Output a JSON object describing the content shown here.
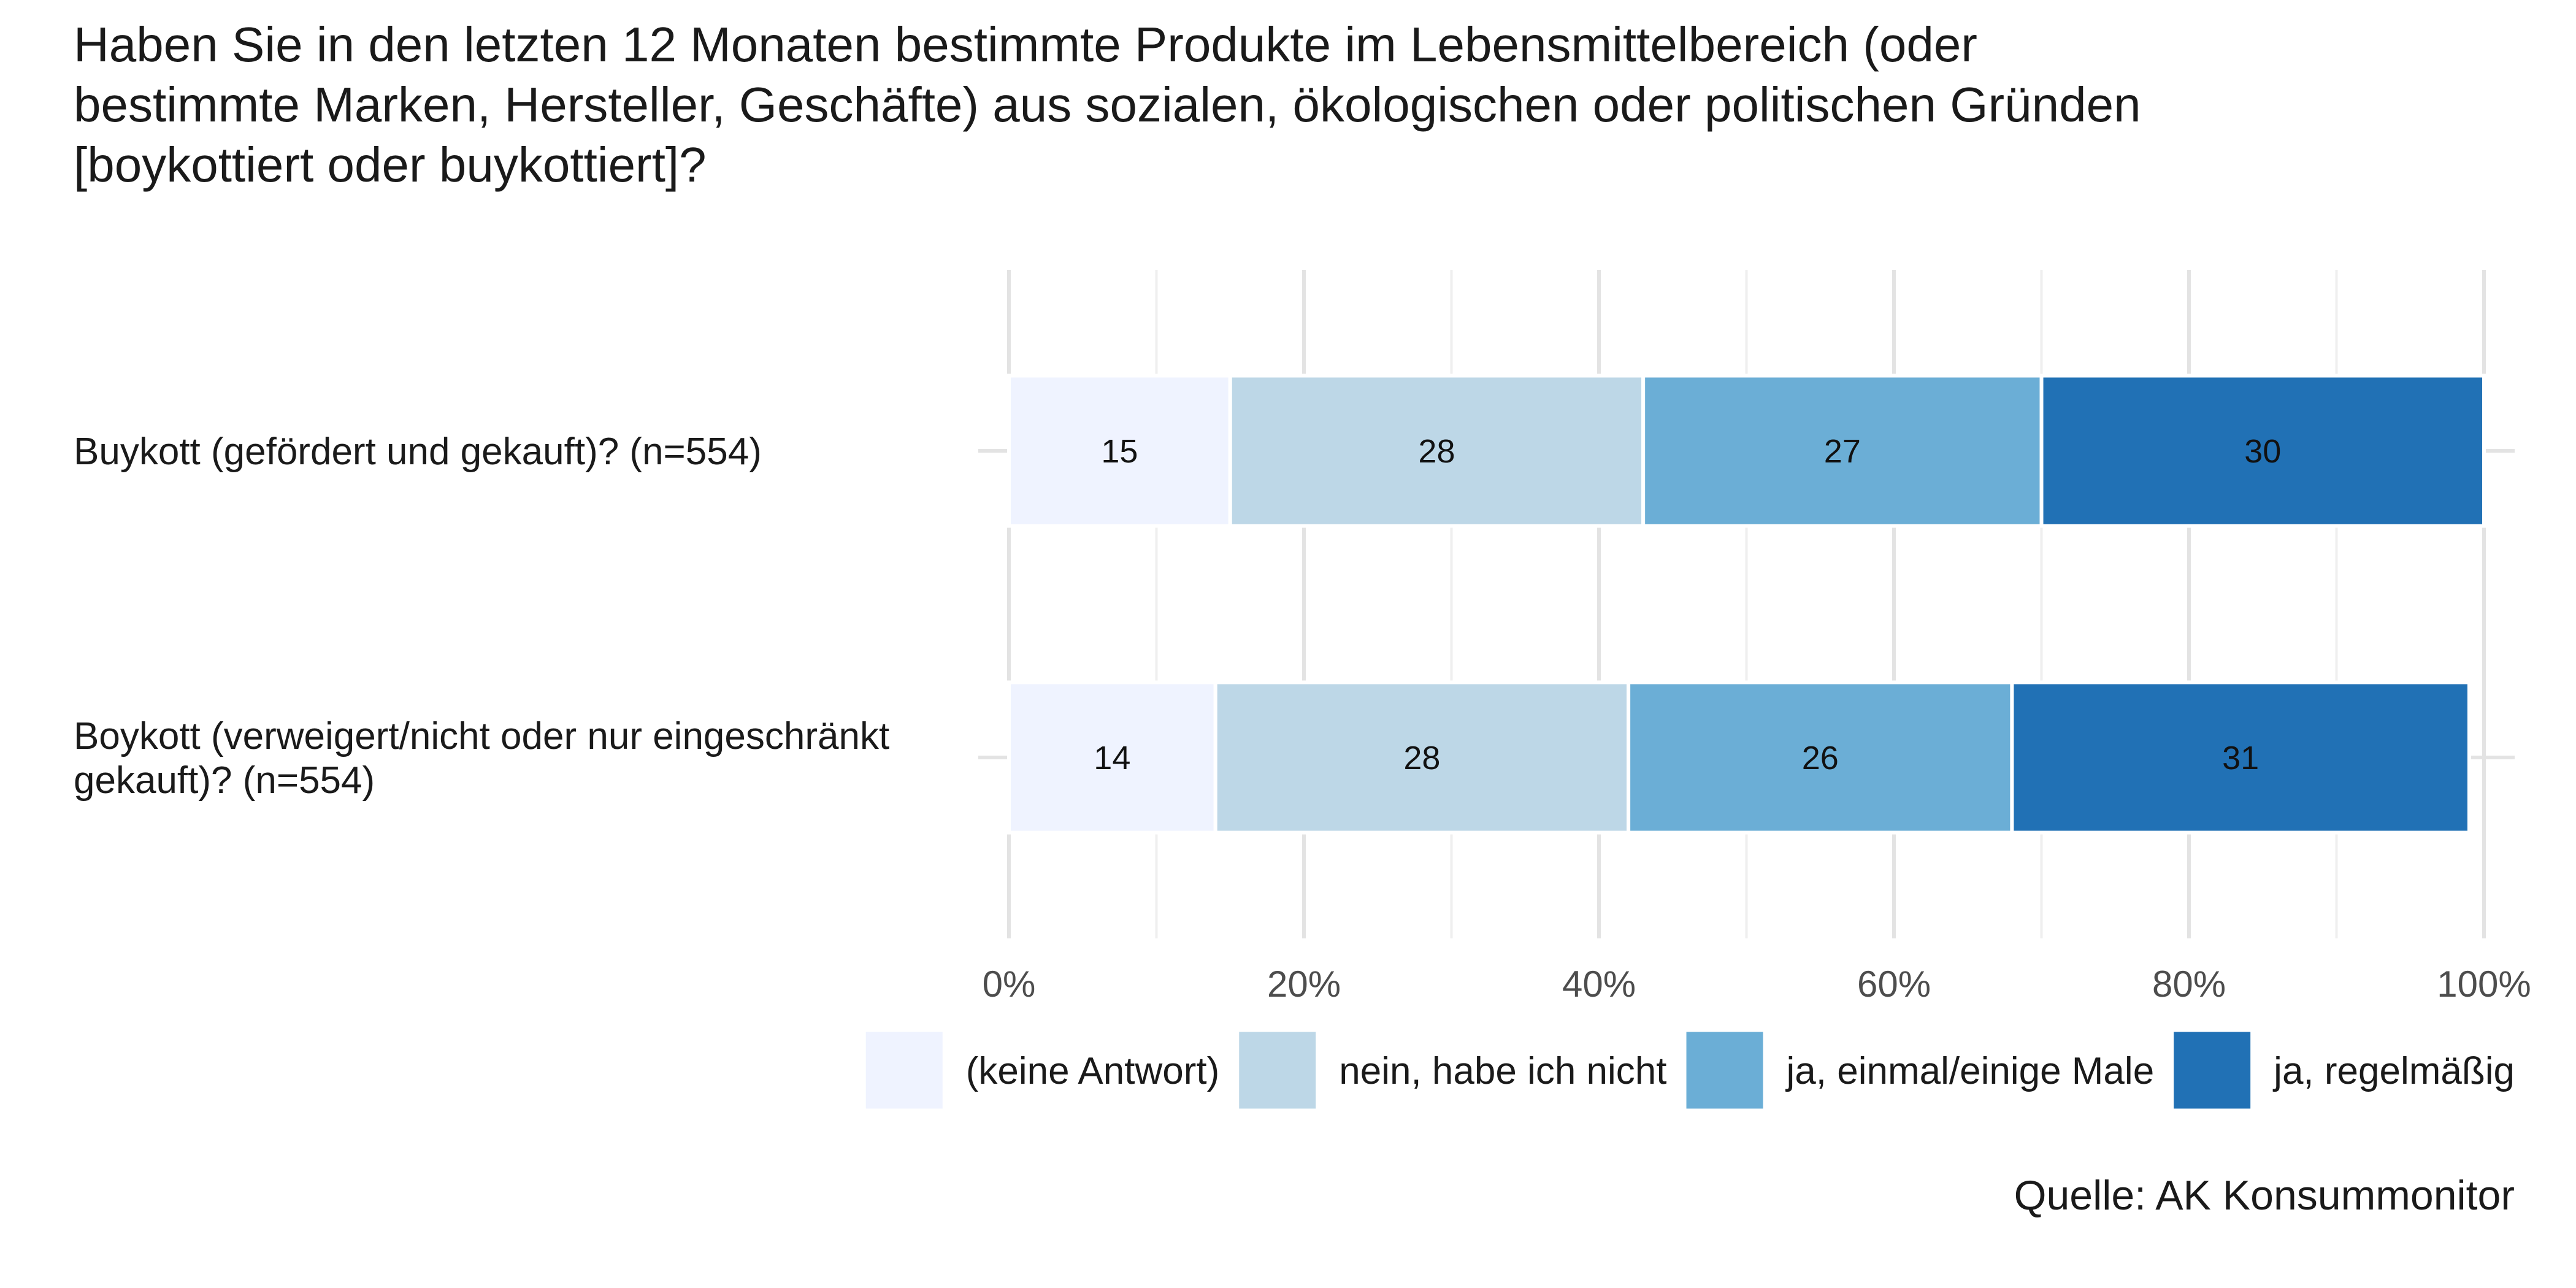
{
  "chart_data": {
    "type": "bar",
    "orientation": "horizontal",
    "stacked": true,
    "title_lines": [
      "Haben Sie in den letzten 12 Monaten bestimmte Produkte im Lebensmittelbereich (oder",
      "bestimmte Marken, Hersteller, Geschäfte) aus sozialen, ökologischen oder politischen Gründen",
      "[boykottiert oder buykottiert]?"
    ],
    "categories": [
      {
        "lines": [
          "Buykott (gefördert und gekauft)? (n=554)"
        ]
      },
      {
        "lines": [
          "Boykott (verweigert/nicht oder nur eingeschränkt",
          "gekauft)? (n=554)"
        ]
      }
    ],
    "series": [
      {
        "name": "(keine Antwort)",
        "color": "#eff3ff",
        "values": [
          15,
          14
        ]
      },
      {
        "name": "nein, habe ich nicht",
        "color": "#bdd7e7",
        "values": [
          28,
          28
        ]
      },
      {
        "name": "ja, einmal/einige Male",
        "color": "#6baed6",
        "values": [
          27,
          26
        ]
      },
      {
        "name": "ja, regelmäßig",
        "color": "#2171b5",
        "values": [
          30,
          31
        ]
      }
    ],
    "xlim": [
      0,
      100
    ],
    "xticks": [
      0,
      20,
      40,
      60,
      80,
      100
    ],
    "xtick_labels": [
      "0%",
      "20%",
      "40%",
      "60%",
      "80%",
      "100%"
    ],
    "grid": true,
    "legend_position": "bottom",
    "source": "Quelle: AK Konsummonitor"
  }
}
